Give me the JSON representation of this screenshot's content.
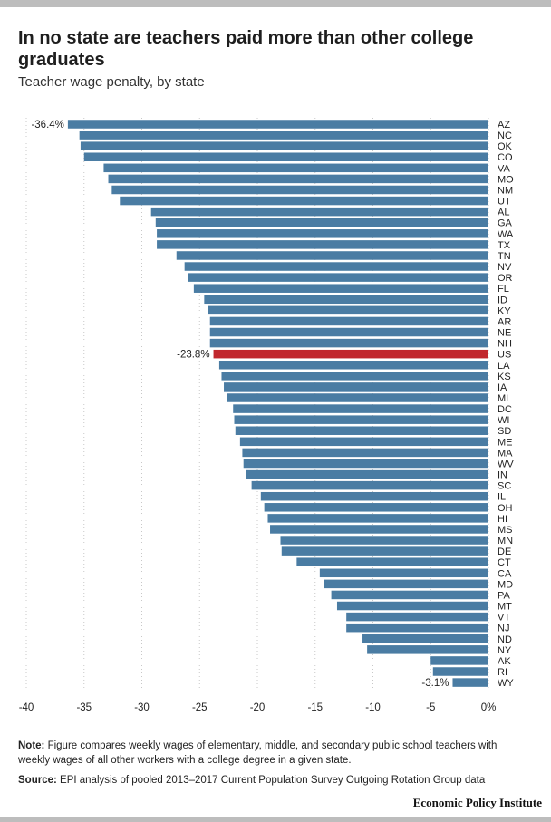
{
  "title": "In no state are teachers paid more than other college graduates",
  "subtitle": "Teacher wage penalty, by state",
  "note_label": "Note:",
  "note_text": " Figure compares weekly wages of elementary, middle, and secondary public school teachers with weekly wages of all other workers with a college degree in a given state.",
  "source_label": "Source:",
  "source_text": " EPI analysis of pooled 2013–2017 Current Population Survey Outgoing Rotation Group data",
  "brand": "Economic Policy Institute",
  "colors": {
    "bar": "#4a7ca3",
    "highlight": "#c1272d",
    "grid": "#c8c8c8"
  },
  "chart_data": {
    "type": "bar",
    "orientation": "horizontal",
    "categories": [
      "AZ",
      "NC",
      "OK",
      "CO",
      "VA",
      "MO",
      "NM",
      "UT",
      "AL",
      "GA",
      "WA",
      "TX",
      "TN",
      "NV",
      "OR",
      "FL",
      "ID",
      "KY",
      "AR",
      "NE",
      "NH",
      "US",
      "LA",
      "KS",
      "IA",
      "MI",
      "DC",
      "WI",
      "SD",
      "ME",
      "MA",
      "WV",
      "IN",
      "SC",
      "IL",
      "OH",
      "HI",
      "MS",
      "MN",
      "DE",
      "CT",
      "CA",
      "MD",
      "PA",
      "MT",
      "VT",
      "NJ",
      "ND",
      "NY",
      "AK",
      "RI",
      "WY"
    ],
    "values": [
      -36.4,
      -35.4,
      -35.3,
      -35.0,
      -33.3,
      -32.9,
      -32.6,
      -31.9,
      -29.2,
      -28.8,
      -28.7,
      -28.7,
      -27.0,
      -26.3,
      -26.0,
      -25.5,
      -24.6,
      -24.3,
      -24.1,
      -24.1,
      -24.1,
      -23.8,
      -23.3,
      -23.1,
      -22.9,
      -22.6,
      -22.1,
      -22.0,
      -21.9,
      -21.5,
      -21.3,
      -21.2,
      -21.0,
      -20.5,
      -19.7,
      -19.4,
      -19.1,
      -18.9,
      -18.0,
      -17.9,
      -16.6,
      -14.6,
      -14.2,
      -13.6,
      -13.1,
      -12.3,
      -12.3,
      -10.9,
      -10.5,
      -5.0,
      -4.8,
      -3.1
    ],
    "highlight": "US",
    "data_labels": [
      {
        "category": "AZ",
        "text": "-36.4%"
      },
      {
        "category": "US",
        "text": "-23.8%"
      },
      {
        "category": "WY",
        "text": "-3.1%"
      }
    ],
    "xlim": [
      -40,
      0
    ],
    "xticks": [
      -40,
      -35,
      -30,
      -25,
      -20,
      -15,
      -10,
      -5,
      0
    ],
    "xtick_labels": [
      "-40",
      "-35",
      "-30",
      "-25",
      "-20",
      "-15",
      "-10",
      "-5",
      "0%"
    ],
    "xlabel": "",
    "ylabel": "",
    "grid": true
  }
}
